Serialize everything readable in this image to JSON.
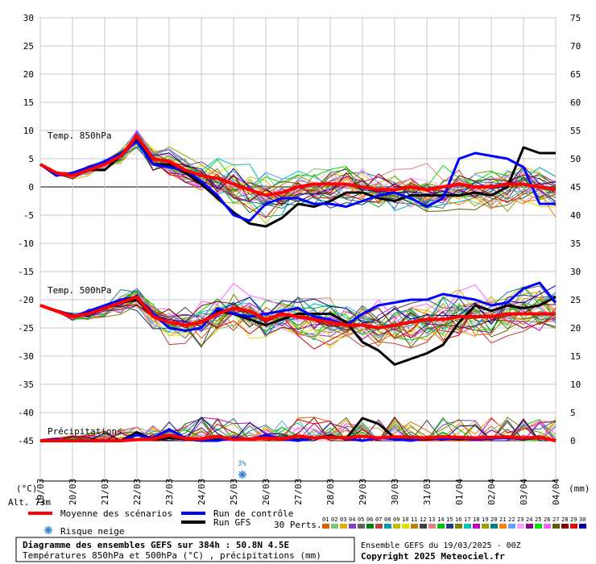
{
  "chart_data": {
    "type": "line",
    "left_axis": {
      "unit": "(°C)",
      "ticks": [
        30,
        25,
        20,
        15,
        10,
        5,
        0,
        -5,
        -10,
        -15,
        -20,
        -25,
        -30,
        -35,
        -40,
        -45
      ],
      "ylim": [
        -45,
        30
      ]
    },
    "right_axis": {
      "unit": "(mm)",
      "ticks": [
        75,
        70,
        65,
        60,
        55,
        50,
        45,
        40,
        35,
        30,
        25,
        20,
        15,
        10,
        5,
        0
      ],
      "ylim": [
        0,
        75
      ]
    },
    "x_dates": [
      "19/03",
      "20/03",
      "21/03",
      "22/03",
      "23/03",
      "24/03",
      "25/03",
      "26/03",
      "27/03",
      "28/03",
      "29/03",
      "30/03",
      "31/03",
      "01/04",
      "02/04",
      "03/04",
      "04/04"
    ],
    "altitude": "Alt. 73m",
    "section_labels": {
      "t850": "Temp. 850hPa",
      "t500": "Temp. 500hPa",
      "precip": "Précipitations"
    },
    "snow_risk": {
      "date_index": 6,
      "label": "3%"
    },
    "grid": true,
    "series": [
      {
        "name": "Moyenne des scénarios",
        "color": "#ff0000",
        "x": [
          0,
          0.5,
          1,
          1.5,
          2,
          2.5,
          3,
          3.5,
          4,
          4.5,
          5,
          5.5,
          6,
          6.5,
          7,
          7.5,
          8,
          8.5,
          9,
          9.5,
          10,
          10.5,
          11,
          11.5,
          12,
          12.5,
          13,
          13.5,
          14,
          14.5,
          15,
          15.5,
          16
        ],
        "t850": [
          4,
          2.5,
          2,
          3,
          4,
          5.5,
          9,
          5,
          4.5,
          3,
          2,
          1.5,
          0.5,
          -0.5,
          -1.5,
          -1,
          0,
          0.5,
          0.5,
          0.5,
          0,
          -0.5,
          -0.5,
          0,
          -0.5,
          0,
          0.5,
          0,
          0,
          0.5,
          0.5,
          0,
          -0.5
        ],
        "t500": [
          -21,
          -22,
          -23,
          -22.5,
          -21.5,
          -20.5,
          -19.5,
          -23,
          -24,
          -24.5,
          -24,
          -22.5,
          -21.5,
          -22,
          -23.5,
          -22.5,
          -23,
          -23.5,
          -24,
          -24.5,
          -24.5,
          -25,
          -24.5,
          -24,
          -23.5,
          -23.5,
          -23,
          -23,
          -23,
          -22.5,
          -22.5,
          -22.5,
          -22.5
        ],
        "precip": [
          0,
          0,
          0,
          0,
          0,
          0,
          0.2,
          0.3,
          1,
          0.4,
          0.3,
          0.8,
          0.2,
          0.3,
          0.5,
          0.3,
          0.8,
          0.5,
          0.6,
          0.5,
          0.8,
          0.5,
          0.7,
          0.6,
          0.5,
          0.7,
          0.6,
          0.5,
          0.6,
          0.7,
          0.5,
          0.6,
          0
        ]
      },
      {
        "name": "Run de contrôle",
        "color": "#0000ff",
        "x": [
          0,
          0.5,
          1,
          1.5,
          2,
          2.5,
          3,
          3.5,
          4,
          4.5,
          5,
          5.5,
          6,
          6.5,
          7,
          7.5,
          8,
          8.5,
          9,
          9.5,
          10,
          10.5,
          11,
          11.5,
          12,
          12.5,
          13,
          13.5,
          14,
          14.5,
          15,
          15.5,
          16
        ],
        "t850": [
          4,
          2,
          2.5,
          3.5,
          4.5,
          6,
          8,
          4,
          3.5,
          3,
          1,
          -1.5,
          -5,
          -6,
          -3,
          -2,
          -2,
          -3,
          -3,
          -3.5,
          -2.5,
          -1.5,
          -1,
          -2,
          -3.5,
          -2,
          5,
          6,
          5.5,
          5,
          3.5,
          -3,
          -3
        ],
        "t500": [
          -21,
          -22,
          -23,
          -22,
          -21,
          -20,
          -19.5,
          -22.5,
          -25,
          -25.5,
          -25,
          -21.5,
          -22.5,
          -23,
          -22.5,
          -22,
          -21.5,
          -23,
          -23.5,
          -24.5,
          -22.5,
          -21,
          -20.5,
          -20,
          -20,
          -19,
          -19.5,
          -20,
          -21,
          -20.5,
          -18,
          -17,
          -20.5
        ],
        "precip": [
          0,
          0,
          0,
          0,
          0,
          0,
          1,
          0.5,
          2,
          0.5,
          0,
          0,
          0.5,
          0.2,
          1,
          0.3,
          0,
          0.5,
          0.6,
          0.4,
          0,
          0.5,
          0.3,
          0,
          0.5,
          0.3,
          0.5,
          0.2,
          0.4,
          0.5,
          0.3,
          0.6,
          0
        ]
      },
      {
        "name": "Run GFS",
        "color": "#000000",
        "x": [
          0,
          0.5,
          1,
          1.5,
          2,
          2.5,
          3,
          3.5,
          4,
          4.5,
          5,
          5.5,
          6,
          6.5,
          7,
          7.5,
          8,
          8.5,
          9,
          9.5,
          10,
          10.5,
          11,
          11.5,
          12,
          12.5,
          13,
          13.5,
          14,
          14.5,
          15,
          15.5,
          16
        ],
        "t850": [
          4,
          2.5,
          2,
          3,
          3,
          5.5,
          8.5,
          4,
          4,
          2.5,
          0.5,
          -2,
          -4.5,
          -6.5,
          -7,
          -5.5,
          -3,
          -3.5,
          -2.5,
          -1,
          -1,
          -2,
          -2.5,
          -1.5,
          -1.5,
          -1.5,
          -1.5,
          -1,
          -1.5,
          0,
          7,
          6,
          6
        ],
        "t500": [
          -21,
          -22,
          -23,
          -22.5,
          -21.5,
          -20.5,
          -20,
          -23,
          -24,
          -24.5,
          -24,
          -22,
          -22.5,
          -23.5,
          -24.5,
          -23.5,
          -22.5,
          -22.5,
          -22.5,
          -24,
          -27.5,
          -29,
          -31.5,
          -30.5,
          -29.5,
          -28,
          -24,
          -21,
          -22,
          -21,
          -21.5,
          -21,
          -19.5
        ],
        "precip": [
          0,
          0,
          0,
          0,
          0,
          0,
          1.5,
          0.2,
          0.5,
          0.3,
          0,
          0.2,
          0.3,
          0.3,
          0.6,
          0.3,
          0.2,
          0.5,
          0.8,
          0.4,
          4,
          3,
          0.5,
          0.2,
          0.3,
          0.5,
          0.3,
          0.4,
          0.5,
          0.6,
          0.3,
          0.5,
          0
        ]
      }
    ],
    "perturbation_count": 30
  },
  "legend": {
    "mean": "Moyenne des scénarios",
    "control": "Run de contrôle",
    "gfs": "Run GFS",
    "perts": "30 Perts.",
    "snow": "Risque neige"
  },
  "pert_numbers": [
    "01",
    "02",
    "03",
    "04",
    "05",
    "06",
    "07",
    "08",
    "09",
    "10",
    "11",
    "12",
    "13",
    "14",
    "15",
    "16",
    "17",
    "18",
    "19",
    "20",
    "21",
    "22",
    "23",
    "24",
    "25",
    "26",
    "27",
    "28",
    "29",
    "30"
  ],
  "pert_colors": [
    "#e06000",
    "#80c080",
    "#e0b000",
    "#8040c0",
    "#606060",
    "#008000",
    "#c04040",
    "#00a0a0",
    "#c0c000",
    "#e0e000",
    "#c08000",
    "#404040",
    "#e08080",
    "#00c000",
    "#204080",
    "#808000",
    "#00c0c0",
    "#c000c0",
    "#a0a000",
    "#008080",
    "#ff8000",
    "#60a0ff",
    "#ffa0ff",
    "#800080",
    "#00e000",
    "#ff60ff",
    "#606000",
    "#800000",
    "#e00000",
    "#0000a0"
  ],
  "footer": {
    "title": "Diagramme des ensembles GEFS sur 384h : 50.8N 4.5E",
    "subtitle": "Températures 850hPa et 500hPa (°C) , précipitations (mm)",
    "run_info": "Ensemble GEFS du 19/03/2025 - 00Z",
    "copyright": "Copyright 2025 Meteociel.fr"
  },
  "colors": {
    "mean": "#ff0000",
    "control": "#0000ff",
    "gfs": "#000000",
    "grid": "#c0c0c0"
  }
}
